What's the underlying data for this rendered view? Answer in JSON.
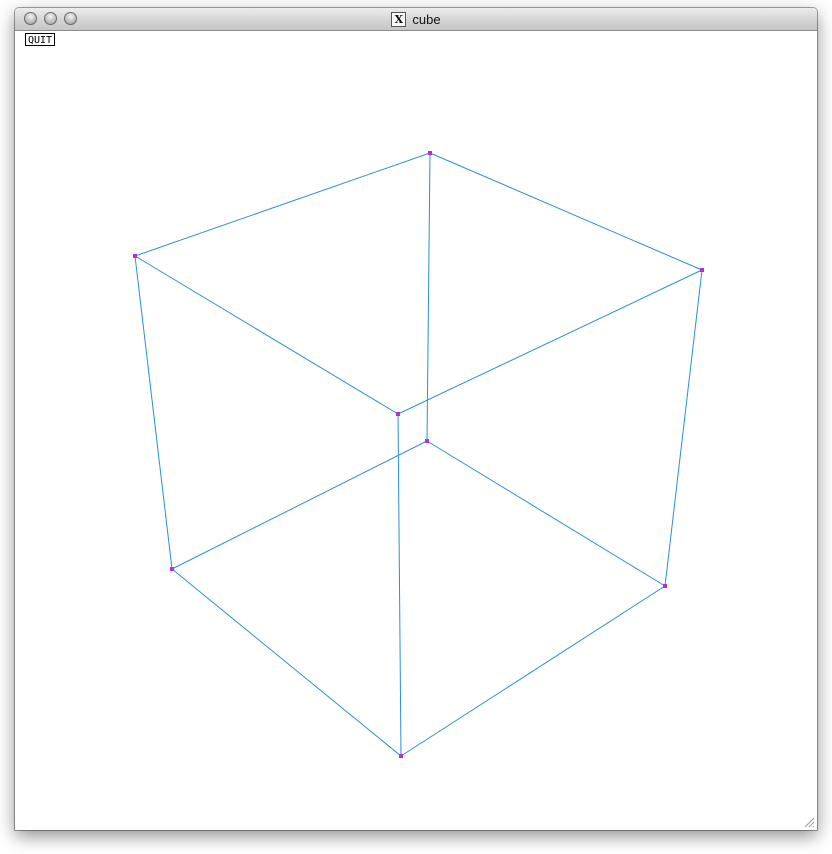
{
  "window": {
    "title": "cube",
    "app_icon": "x11-icon",
    "title_icon_glyph": "X"
  },
  "toolbar": {
    "quit_label": "QUIT"
  },
  "cube": {
    "edge_color": "#2b8fd6",
    "vertex_color": "#b030e0",
    "vertex_count": 8,
    "edge_count": 12
  }
}
